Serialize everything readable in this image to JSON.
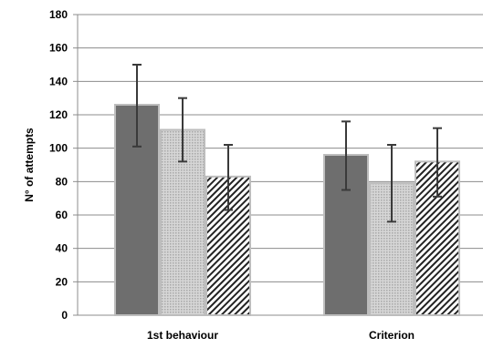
{
  "chart_data": {
    "type": "bar",
    "title": "",
    "xlabel": "",
    "ylabel": "N° of attempts",
    "ylim": [
      0,
      180
    ],
    "yticks": [
      0,
      20,
      40,
      60,
      80,
      100,
      120,
      140,
      160,
      180
    ],
    "grid": true,
    "legend": "none",
    "categories": [
      "1st behaviour",
      "Criterion"
    ],
    "series": [
      {
        "fill": "solid-dark-gray",
        "color": "#6e6e6e",
        "values": [
          126,
          96
        ],
        "error_low": [
          101,
          75
        ],
        "error_high": [
          150,
          116
        ]
      },
      {
        "fill": "dotted-light-gray",
        "color": "#c8c8c8",
        "values": [
          111,
          79
        ],
        "error_low": [
          92,
          56
        ],
        "error_high": [
          130,
          102
        ]
      },
      {
        "fill": "diagonal-hatch",
        "color": "#333333",
        "values": [
          83,
          92
        ],
        "error_low": [
          63,
          71
        ],
        "error_high": [
          102,
          112
        ]
      }
    ]
  }
}
